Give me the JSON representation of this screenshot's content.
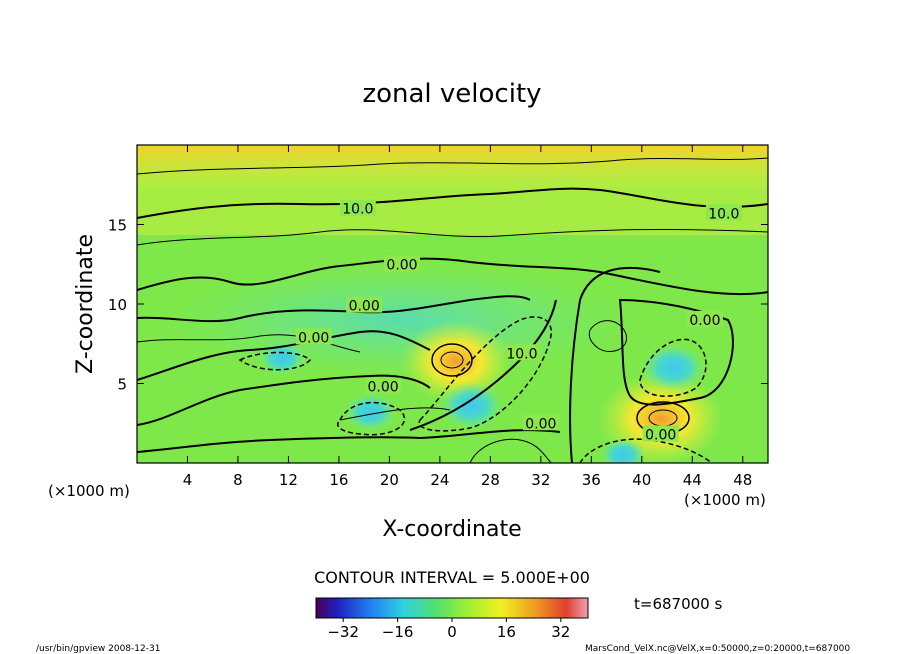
{
  "chart_data": {
    "type": "heatmap",
    "title": "zonal velocity",
    "xlabel": "X-coordinate",
    "ylabel": "Z-coordinate",
    "x_unit_left": "(×1000 m)",
    "x_unit_right": "(×1000 m)",
    "xlim": [
      0,
      50
    ],
    "ylim": [
      0,
      20
    ],
    "x_ticks": [
      4,
      8,
      12,
      16,
      20,
      24,
      28,
      32,
      36,
      40,
      44,
      48
    ],
    "y_ticks": [
      5,
      10,
      15
    ],
    "contour_interval_text": "CONTOUR INTERVAL = 5.000E+00",
    "time_label": "t=687000 s",
    "colorbar": {
      "range": [
        -40,
        40
      ],
      "ticks": [
        -32,
        -16,
        0,
        16,
        32
      ]
    },
    "contour_labels": [
      {
        "text": "10.0",
        "x": 17.5,
        "y": 16.0
      },
      {
        "text": "10.0",
        "x": 46.5,
        "y": 15.7
      },
      {
        "text": "0.00",
        "x": 21.0,
        "y": 12.5
      },
      {
        "text": "0.00",
        "x": 18.0,
        "y": 9.9
      },
      {
        "text": "0.00",
        "x": 14.0,
        "y": 7.9
      },
      {
        "text": "0.00",
        "x": 19.5,
        "y": 4.8
      },
      {
        "text": "10.0",
        "x": 30.5,
        "y": 6.9
      },
      {
        "text": "0.00",
        "x": 32.0,
        "y": 2.5
      },
      {
        "text": "0.00",
        "x": 41.5,
        "y": 1.8
      },
      {
        "text": "0.00",
        "x": 45.0,
        "y": 9.0
      }
    ],
    "features": [
      {
        "kind": "max",
        "x": 25.3,
        "y": 6.4,
        "value": 30
      },
      {
        "kind": "max",
        "x": 41.5,
        "y": 2.8,
        "value": 35
      },
      {
        "kind": "min",
        "x": 42.5,
        "y": 6.0,
        "value": -14
      },
      {
        "kind": "min",
        "x": 26.5,
        "y": 3.6,
        "value": -14
      },
      {
        "kind": "min",
        "x": 18.5,
        "y": 3.2,
        "value": -10
      },
      {
        "kind": "min",
        "x": 11.5,
        "y": 6.6,
        "value": -8
      },
      {
        "kind": "min",
        "x": 38.5,
        "y": 0.5,
        "value": -8
      }
    ]
  },
  "footer": {
    "left": "/usr/bin/gpview   2008-12-31",
    "right": "MarsCond_VelX.nc@VelX,x=0:50000,z=0:20000,t=687000"
  }
}
